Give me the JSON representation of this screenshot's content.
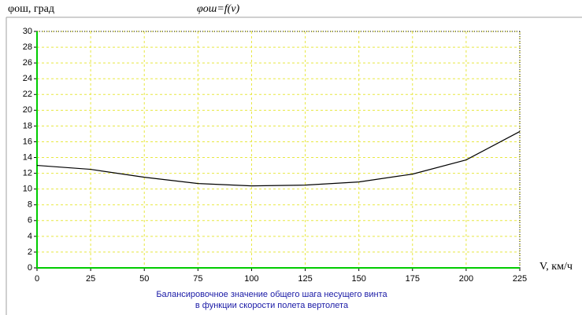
{
  "chart_data": {
    "type": "line",
    "title": "φош=f(v)",
    "y_label": "φош, град",
    "x_label": "V, км/ч",
    "caption": [
      "Балансировочное значение общего шага несущего винта",
      "в функции скорости полета вертолета"
    ],
    "x": [
      0,
      25,
      50,
      75,
      100,
      125,
      150,
      175,
      200,
      225
    ],
    "series": [
      {
        "color": "#000000",
        "values": [
          13.0,
          12.5,
          11.5,
          10.7,
          10.4,
          10.5,
          10.9,
          11.9,
          13.7,
          17.3
        ]
      }
    ],
    "xlim": [
      0,
      225
    ],
    "xticks": [
      0,
      25,
      50,
      75,
      100,
      125,
      150,
      175,
      200,
      225
    ],
    "ylim": [
      0,
      30
    ],
    "yticks": [
      0,
      2,
      4,
      6,
      8,
      10,
      12,
      14,
      16,
      18,
      20,
      22,
      24,
      26,
      28,
      30
    ],
    "grid": true
  }
}
